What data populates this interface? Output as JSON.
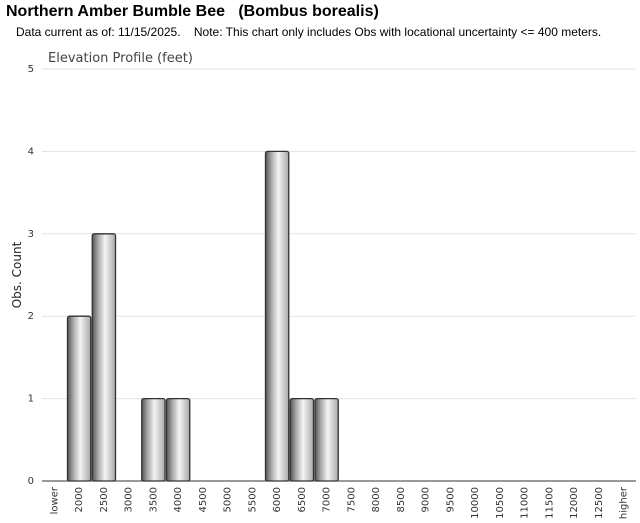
{
  "title": "Northern Amber Bumble Bee   (Bombus borealis)",
  "subtitle": "Data current as of: 11/15/2025.    Note: This chart only includes Obs with locational uncertainty <= 400 meters.",
  "chart_data": {
    "type": "bar",
    "title": "Elevation Profile (feet)",
    "y_label": "Obs. Count",
    "categories": [
      "lower",
      "2000",
      "2500",
      "3000",
      "3500",
      "4000",
      "4500",
      "5000",
      "5500",
      "6000",
      "6500",
      "7000",
      "7500",
      "8000",
      "8500",
      "9000",
      "9500",
      "10000",
      "10500",
      "11000",
      "11500",
      "12000",
      "12500",
      "higher"
    ],
    "values": [
      0,
      2,
      3,
      0,
      1,
      1,
      0,
      0,
      0,
      4,
      1,
      1,
      0,
      0,
      0,
      0,
      0,
      0,
      0,
      0,
      0,
      0,
      0,
      0
    ],
    "color": "#a8a8a8",
    "ylim": [
      0,
      5
    ],
    "yticks": [
      0,
      1,
      2,
      3,
      4,
      5
    ],
    "grid": true
  }
}
